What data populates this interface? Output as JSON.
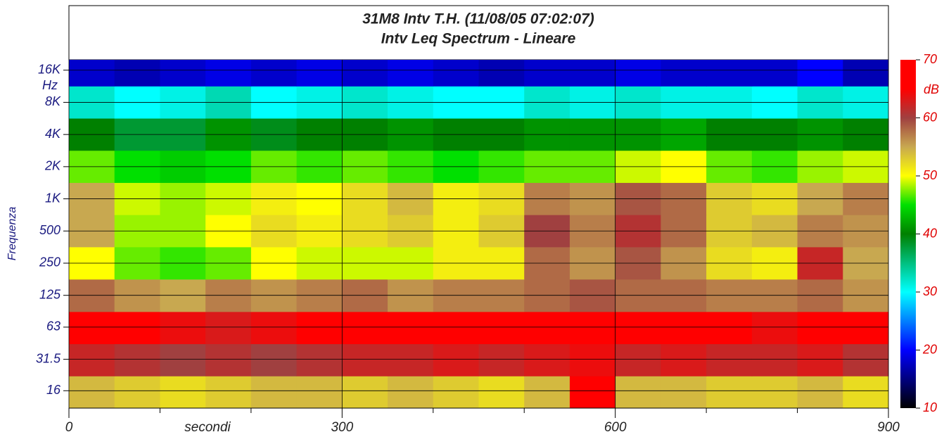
{
  "chart_data": {
    "type": "heatmap",
    "title": "31M8 Intv T.H. (11/08/05 07:02:07)",
    "subtitle": "Intv Leq Spectrum - Lineare",
    "xlabel": "secondi",
    "ylabel": "Frequenza",
    "yunit": "Hz",
    "colorbar_label": "dB",
    "xlim": [
      0,
      900
    ],
    "xticks": [
      0,
      300,
      600,
      900
    ],
    "xminor_ticks": [
      100,
      200,
      400,
      500,
      700,
      800
    ],
    "ylim": [
      11,
      20000
    ],
    "ylog": true,
    "yticks": [
      16,
      31.5,
      63,
      125,
      250,
      500,
      {
        "value": 1000,
        "label": "1K"
      },
      {
        "value": 2000,
        "label": "2K"
      },
      {
        "value": 4000,
        "label": "4K"
      },
      {
        "value": 8000,
        "label": "8K"
      },
      {
        "value": 16000,
        "label": "16K"
      }
    ],
    "grid": true,
    "xbins": [
      0,
      50,
      100,
      150,
      200,
      250,
      300,
      350,
      400,
      450,
      500,
      550,
      600,
      650,
      700,
      750,
      800,
      850,
      900
    ],
    "ybins": [
      11,
      22,
      44,
      88,
      177,
      355,
      710,
      1420,
      2840,
      5680,
      11360,
      20000
    ],
    "z": [
      [
        54,
        53,
        52,
        53,
        54,
        54,
        53,
        54,
        53,
        52,
        54,
        66,
        54,
        54,
        53,
        53,
        54,
        52
      ],
      [
        62,
        61,
        60,
        61,
        60,
        61,
        62,
        62,
        63,
        62,
        63,
        64,
        62,
        63,
        62,
        62,
        63,
        61
      ],
      [
        66,
        65,
        64,
        63,
        64,
        65,
        66,
        65,
        66,
        65,
        66,
        67,
        66,
        66,
        65,
        64,
        66,
        65
      ],
      [
        58,
        56,
        55,
        57,
        56,
        57,
        58,
        56,
        57,
        57,
        58,
        59,
        58,
        58,
        57,
        57,
        58,
        56
      ],
      [
        50,
        47,
        46,
        47,
        50,
        49,
        49,
        49,
        51,
        51,
        58,
        56,
        59,
        56,
        52,
        51,
        62,
        55
      ],
      [
        55,
        48,
        48,
        50,
        52,
        51,
        52,
        53,
        51,
        53,
        60,
        57,
        61,
        58,
        53,
        54,
        57,
        56
      ],
      [
        55,
        49,
        48,
        49,
        51,
        50,
        52,
        54,
        51,
        52,
        57,
        56,
        59,
        58,
        53,
        52,
        55,
        57
      ],
      [
        47,
        45,
        44,
        45,
        47,
        46,
        47,
        46,
        45,
        46,
        47,
        47,
        49,
        50,
        47,
        46,
        48,
        49
      ],
      [
        40,
        38,
        38,
        41,
        39,
        40,
        40,
        41,
        40,
        40,
        41,
        41,
        41,
        42,
        40,
        40,
        41,
        40
      ],
      [
        32,
        30,
        31,
        33,
        30,
        31,
        32,
        31,
        30,
        30,
        32,
        31,
        32,
        31,
        31,
        30,
        32,
        31
      ],
      [
        18,
        17,
        18,
        19,
        18,
        19,
        18,
        19,
        18,
        17,
        18,
        18,
        19,
        18,
        18,
        18,
        20,
        17
      ]
    ],
    "zlim": [
      10,
      70
    ],
    "zticks": [
      10,
      20,
      30,
      40,
      50,
      60,
      70
    ],
    "colorscale": [
      [
        10,
        "#000000"
      ],
      [
        20,
        "#0000ff"
      ],
      [
        30,
        "#00ffff"
      ],
      [
        40,
        "#008000"
      ],
      [
        45,
        "#00e000"
      ],
      [
        50,
        "#ffff00"
      ],
      [
        55,
        "#c8a850"
      ],
      [
        60,
        "#a04040"
      ],
      [
        65,
        "#ff0000"
      ],
      [
        70,
        "#ff0000"
      ]
    ]
  }
}
